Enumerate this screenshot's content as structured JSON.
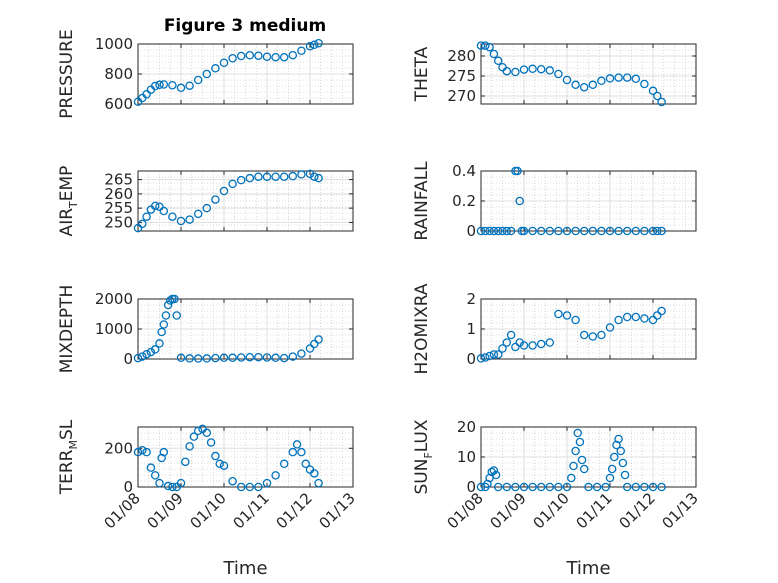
{
  "title": "Figure 3 medium",
  "colors": {
    "marker": "#0072BD",
    "axis": "#262626",
    "grid": "#dfdfdf",
    "minor_grid": "#bdbdbd"
  },
  "x_axis": {
    "label": "Time",
    "ticks": [
      "01/08",
      "01/09",
      "01/10",
      "01/11",
      "01/12",
      "01/13"
    ]
  },
  "chart_data": [
    {
      "type": "scatter",
      "ylabel": {
        "base": "PRESSURE",
        "sub": ""
      },
      "yticks": [
        600,
        800,
        1000
      ],
      "ylim": [
        600,
        1000
      ],
      "xlim": [
        0,
        5
      ],
      "grid": true,
      "minor_grid": true,
      "x": [
        0.0,
        0.1,
        0.2,
        0.3,
        0.4,
        0.5,
        0.6,
        0.8,
        1.0,
        1.2,
        1.4,
        1.6,
        1.8,
        2.0,
        2.2,
        2.4,
        2.6,
        2.8,
        3.0,
        3.2,
        3.4,
        3.6,
        3.8,
        4.0,
        4.1,
        4.2
      ],
      "y": [
        615,
        640,
        665,
        695,
        720,
        728,
        730,
        725,
        708,
        722,
        760,
        800,
        838,
        875,
        905,
        920,
        925,
        922,
        915,
        912,
        912,
        925,
        955,
        985,
        995,
        1005
      ]
    },
    {
      "type": "scatter",
      "ylabel": {
        "base": "THETA",
        "sub": ""
      },
      "yticks": [
        270,
        275,
        280
      ],
      "ylim": [
        268,
        283
      ],
      "xlim": [
        0,
        5
      ],
      "grid": true,
      "minor_grid": true,
      "x": [
        0.0,
        0.1,
        0.2,
        0.3,
        0.4,
        0.5,
        0.6,
        0.8,
        1.0,
        1.2,
        1.4,
        1.6,
        1.8,
        2.0,
        2.2,
        2.4,
        2.6,
        2.8,
        3.0,
        3.2,
        3.4,
        3.6,
        3.8,
        4.0,
        4.1,
        4.2
      ],
      "y": [
        282.6,
        282.6,
        282.2,
        280.5,
        278.8,
        277.2,
        276.2,
        276.0,
        276.6,
        276.8,
        276.7,
        276.4,
        275.5,
        274.0,
        272.8,
        272.2,
        272.8,
        273.8,
        274.4,
        274.6,
        274.6,
        274.3,
        273.0,
        271.3,
        270.0,
        268.5
      ]
    },
    {
      "type": "scatter",
      "ylabel": {
        "base": "AIR",
        "sub": "T",
        "rest": "EMP"
      },
      "yticks": [
        250,
        255,
        260,
        265
      ],
      "ylim": [
        247,
        268
      ],
      "xlim": [
        0,
        5
      ],
      "grid": true,
      "minor_grid": true,
      "x": [
        0.0,
        0.1,
        0.2,
        0.3,
        0.4,
        0.5,
        0.6,
        0.8,
        1.0,
        1.2,
        1.4,
        1.6,
        1.8,
        2.0,
        2.2,
        2.4,
        2.6,
        2.8,
        3.0,
        3.2,
        3.4,
        3.6,
        3.8,
        4.0,
        4.1,
        4.2
      ],
      "y": [
        248.0,
        249.5,
        252.0,
        254.5,
        255.8,
        255.5,
        254.0,
        252.0,
        250.5,
        251.0,
        253.0,
        255.0,
        258.0,
        261.0,
        263.5,
        264.8,
        265.5,
        266.0,
        266.0,
        266.0,
        266.0,
        266.2,
        266.8,
        267.0,
        266.0,
        265.5
      ]
    },
    {
      "type": "scatter",
      "ylabel": {
        "base": "RAINFALL",
        "sub": ""
      },
      "yticks": [
        0,
        0.2,
        0.4
      ],
      "ylim": [
        0,
        0.4
      ],
      "xlim": [
        0,
        5
      ],
      "grid": true,
      "minor_grid": true,
      "x": [
        0.0,
        0.1,
        0.2,
        0.3,
        0.4,
        0.5,
        0.6,
        0.7,
        0.8,
        0.85,
        0.9,
        0.95,
        1.0,
        1.2,
        1.4,
        1.6,
        1.8,
        2.0,
        2.2,
        2.4,
        2.6,
        2.8,
        3.0,
        3.2,
        3.4,
        3.6,
        3.8,
        4.0,
        4.1,
        4.2
      ],
      "y": [
        0,
        0,
        0,
        0,
        0,
        0,
        0,
        0,
        0.4,
        0.4,
        0.2,
        0,
        0,
        0,
        0,
        0,
        0,
        0,
        0,
        0,
        0,
        0,
        0,
        0,
        0,
        0,
        0,
        0,
        0,
        0
      ]
    },
    {
      "type": "scatter",
      "ylabel": {
        "base": "MIXDEPTH",
        "sub": ""
      },
      "yticks": [
        0,
        1000,
        2000
      ],
      "ylim": [
        0,
        2000
      ],
      "xlim": [
        0,
        5
      ],
      "grid": true,
      "minor_grid": true,
      "x": [
        0.0,
        0.1,
        0.2,
        0.3,
        0.4,
        0.5,
        0.55,
        0.6,
        0.65,
        0.7,
        0.75,
        0.8,
        0.85,
        0.9,
        1.0,
        1.2,
        1.4,
        1.6,
        1.8,
        2.0,
        2.2,
        2.4,
        2.6,
        2.8,
        3.0,
        3.2,
        3.4,
        3.6,
        3.8,
        4.0,
        4.1,
        4.2
      ],
      "y": [
        30,
        80,
        160,
        230,
        320,
        520,
        900,
        1150,
        1450,
        1800,
        1950,
        2000,
        2000,
        1450,
        40,
        20,
        15,
        20,
        30,
        40,
        40,
        50,
        60,
        60,
        50,
        40,
        30,
        80,
        180,
        350,
        500,
        650
      ]
    },
    {
      "type": "scatter",
      "ylabel": {
        "base": "H2OMIXRA",
        "sub": ""
      },
      "yticks": [
        0,
        1,
        2
      ],
      "ylim": [
        0,
        2
      ],
      "xlim": [
        0,
        5
      ],
      "grid": true,
      "minor_grid": true,
      "x": [
        0.0,
        0.1,
        0.2,
        0.3,
        0.4,
        0.5,
        0.6,
        0.7,
        0.8,
        0.9,
        1.0,
        1.2,
        1.4,
        1.6,
        1.8,
        2.0,
        2.2,
        2.4,
        2.6,
        2.8,
        3.0,
        3.2,
        3.4,
        3.6,
        3.8,
        4.0,
        4.1,
        4.2
      ],
      "y": [
        0.02,
        0.05,
        0.1,
        0.15,
        0.15,
        0.35,
        0.55,
        0.8,
        0.4,
        0.55,
        0.45,
        0.45,
        0.5,
        0.55,
        1.5,
        1.45,
        1.3,
        0.8,
        0.75,
        0.8,
        1.05,
        1.3,
        1.4,
        1.4,
        1.35,
        1.3,
        1.45,
        1.6
      ]
    },
    {
      "type": "scatter",
      "ylabel": {
        "base": "TERR",
        "sub": "M",
        "rest": "SL"
      },
      "yticks": [
        0,
        200
      ],
      "ylim": [
        0,
        310
      ],
      "xlim": [
        0,
        5
      ],
      "grid": true,
      "minor_grid": true,
      "x": [
        0.0,
        0.1,
        0.2,
        0.3,
        0.4,
        0.5,
        0.55,
        0.6,
        0.7,
        0.8,
        0.9,
        1.0,
        1.1,
        1.2,
        1.3,
        1.4,
        1.5,
        1.6,
        1.7,
        1.8,
        1.9,
        2.0,
        2.2,
        2.4,
        2.6,
        2.8,
        3.0,
        3.2,
        3.4,
        3.6,
        3.7,
        3.8,
        3.9,
        4.0,
        4.1,
        4.2
      ],
      "y": [
        180,
        190,
        180,
        100,
        60,
        20,
        150,
        180,
        5,
        0,
        0,
        20,
        130,
        210,
        260,
        290,
        300,
        280,
        230,
        160,
        120,
        110,
        30,
        0,
        0,
        0,
        20,
        60,
        120,
        180,
        220,
        180,
        120,
        90,
        70,
        20
      ]
    },
    {
      "type": "scatter",
      "ylabel": {
        "base": "SUN",
        "sub": "F",
        "rest": "LUX"
      },
      "yticks": [
        0,
        10,
        20
      ],
      "ylim": [
        0,
        20
      ],
      "xlim": [
        0,
        5
      ],
      "grid": true,
      "minor_grid": true,
      "x": [
        0.0,
        0.1,
        0.15,
        0.2,
        0.25,
        0.3,
        0.35,
        0.4,
        0.6,
        0.8,
        1.0,
        1.2,
        1.4,
        1.6,
        1.8,
        2.0,
        2.1,
        2.15,
        2.2,
        2.25,
        2.3,
        2.35,
        2.4,
        2.5,
        2.7,
        2.9,
        3.0,
        3.05,
        3.1,
        3.15,
        3.2,
        3.25,
        3.3,
        3.35,
        3.4,
        3.6,
        3.8,
        4.0,
        4.2
      ],
      "y": [
        0,
        0,
        1,
        3,
        5,
        5.5,
        4,
        0,
        0,
        0,
        0,
        0,
        0,
        0,
        0,
        0,
        3,
        7,
        12,
        18,
        15,
        9,
        6,
        0,
        0,
        0,
        3,
        6,
        10,
        14,
        16,
        12,
        8,
        4,
        0,
        0,
        0,
        0,
        0
      ]
    }
  ]
}
